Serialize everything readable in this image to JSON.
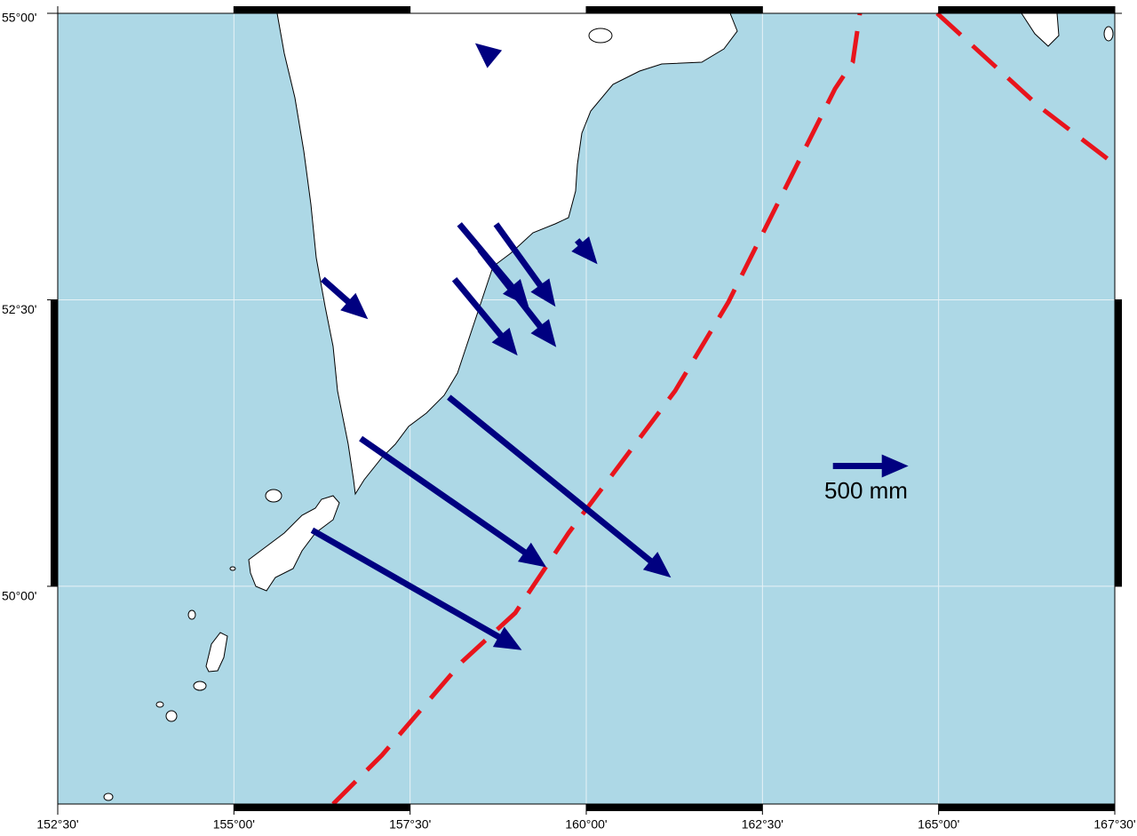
{
  "map": {
    "lonlim": [
      152.5,
      167.5
    ],
    "latlim": [
      48.1,
      55
    ],
    "xticks": [
      {
        "value": 152.5,
        "label": "152°30'"
      },
      {
        "value": 155,
        "label": "155°00'"
      },
      {
        "value": 157.5,
        "label": "157°30'"
      },
      {
        "value": 160,
        "label": "160°00'"
      },
      {
        "value": 162.5,
        "label": "162°30'"
      },
      {
        "value": 165,
        "label": "165°00'"
      },
      {
        "value": 167.5,
        "label": "167°30'"
      }
    ],
    "yticks": [
      {
        "value": 55,
        "label": "55°00'"
      },
      {
        "value": 52.5,
        "label": "52°30'"
      },
      {
        "value": 50,
        "label": "50°00'"
      }
    ],
    "vectors": [
      {
        "lon": 156.26,
        "lat": 52.68,
        "east": 300,
        "north": -265
      },
      {
        "lon": 158.2,
        "lat": 53.16,
        "east": 459,
        "north": -547
      },
      {
        "lon": 158.72,
        "lat": 53.16,
        "east": 394,
        "north": -547
      },
      {
        "lon": 158.49,
        "lat": 52.94,
        "east": 506,
        "north": -647
      },
      {
        "lon": 158.13,
        "lat": 52.68,
        "east": 418,
        "north": -506
      },
      {
        "lon": 159.87,
        "lat": 53.02,
        "east": 135,
        "north": -159
      },
      {
        "lon": 158.7,
        "lat": 54.6,
        "east": -129,
        "north": 106
      },
      {
        "lon": 158.05,
        "lat": 51.65,
        "east": 1471,
        "north": -1194
      },
      {
        "lon": 156.8,
        "lat": 51.29,
        "east": 1229,
        "north": -853
      },
      {
        "lon": 156.11,
        "lat": 50.49,
        "east": 1388,
        "north": -794
      }
    ],
    "scale": {
      "value": 500,
      "label": "500 mm",
      "lon": 163.5,
      "lat": 51.05
    }
  }
}
